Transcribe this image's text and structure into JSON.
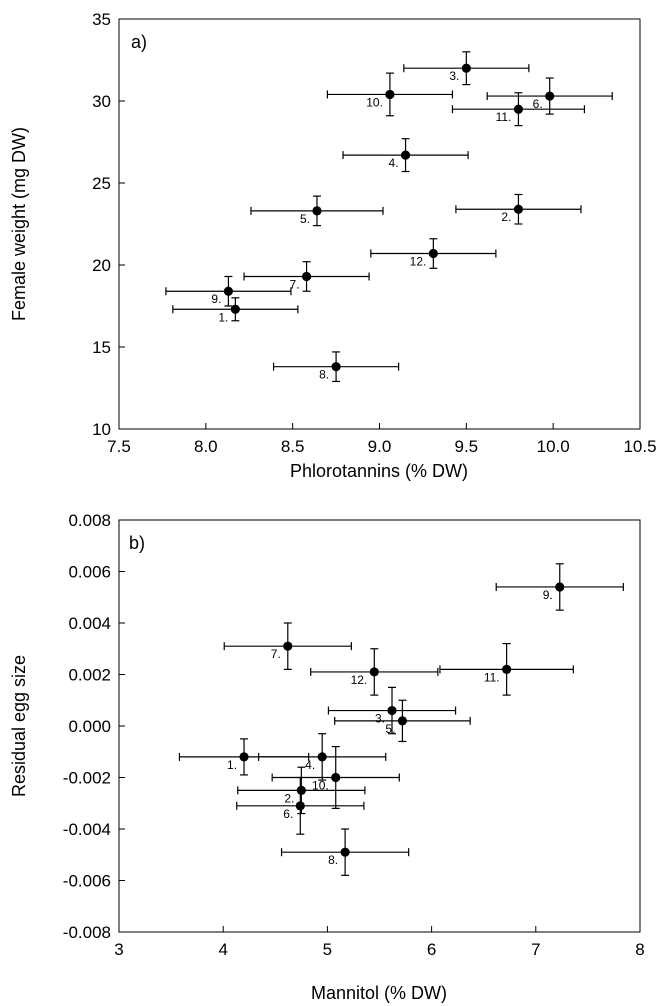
{
  "chart_data": [
    {
      "type": "scatter",
      "panel_label": "a)",
      "xlabel": "Phlorotannins (% DW)",
      "ylabel": "Female weight (mg DW)",
      "xlim": [
        7.5,
        10.5
      ],
      "ylim": [
        10,
        35
      ],
      "xticks": [
        7.5,
        8.0,
        8.5,
        9.0,
        9.5,
        10.0,
        10.5
      ],
      "xtick_labels": [
        "7.5",
        "8.0",
        "8.5",
        "9.0",
        "9.5",
        "10.0",
        "10.5"
      ],
      "yticks": [
        10,
        15,
        20,
        25,
        30,
        35
      ],
      "ytick_labels": [
        "10",
        "15",
        "20",
        "25",
        "30",
        "35"
      ],
      "grid": false,
      "points": [
        {
          "label": "1.",
          "x": 8.17,
          "y": 17.3,
          "xerr": 0.36,
          "yerr": 0.7
        },
        {
          "label": "2.",
          "x": 9.8,
          "y": 23.4,
          "xerr": 0.36,
          "yerr": 0.9
        },
        {
          "label": "3.",
          "x": 9.5,
          "y": 32.0,
          "xerr": 0.36,
          "yerr": 1.0
        },
        {
          "label": "4.",
          "x": 9.15,
          "y": 26.7,
          "xerr": 0.36,
          "yerr": 1.0
        },
        {
          "label": "5.",
          "x": 8.64,
          "y": 23.3,
          "xerr": 0.38,
          "yerr": 0.9
        },
        {
          "label": "6.",
          "x": 9.98,
          "y": 30.3,
          "xerr": 0.36,
          "yerr": 1.1
        },
        {
          "label": "7.",
          "x": 8.58,
          "y": 19.3,
          "xerr": 0.36,
          "yerr": 0.9
        },
        {
          "label": "8.",
          "x": 8.75,
          "y": 13.8,
          "xerr": 0.36,
          "yerr": 0.9
        },
        {
          "label": "9.",
          "x": 8.13,
          "y": 18.4,
          "xerr": 0.36,
          "yerr": 0.9
        },
        {
          "label": "10.",
          "x": 9.06,
          "y": 30.4,
          "xerr": 0.36,
          "yerr": 1.3
        },
        {
          "label": "11.",
          "x": 9.8,
          "y": 29.5,
          "xerr": 0.38,
          "yerr": 1.0
        },
        {
          "label": "12.",
          "x": 9.31,
          "y": 20.7,
          "xerr": 0.36,
          "yerr": 0.9
        }
      ]
    },
    {
      "type": "scatter",
      "panel_label": "b)",
      "xlabel": "Mannitol (% DW)",
      "ylabel": "Residual egg size",
      "xlim": [
        3,
        8
      ],
      "ylim": [
        -0.008,
        0.008
      ],
      "xticks": [
        3,
        4,
        5,
        6,
        7,
        8
      ],
      "xtick_labels": [
        "3",
        "4",
        "5",
        "6",
        "7",
        "8"
      ],
      "yticks": [
        -0.008,
        -0.006,
        -0.004,
        -0.002,
        0.0,
        0.002,
        0.004,
        0.006,
        0.008
      ],
      "ytick_labels": [
        "-0.008",
        "-0.006",
        "-0.004",
        "-0.002",
        "0.000",
        "0.002",
        "0.004",
        "0.006",
        "0.008"
      ],
      "grid": false,
      "points": [
        {
          "label": "1.",
          "x": 4.2,
          "y": -0.0012,
          "xerr": 0.62,
          "yerr": 0.0007
        },
        {
          "label": "2.",
          "x": 4.75,
          "y": -0.0025,
          "xerr": 0.61,
          "yerr": 0.0009
        },
        {
          "label": "3.",
          "x": 5.62,
          "y": 0.0006,
          "xerr": 0.61,
          "yerr": 0.0009
        },
        {
          "label": "4.",
          "x": 4.95,
          "y": -0.0012,
          "xerr": 0.61,
          "yerr": 0.0009
        },
        {
          "label": "5.",
          "x": 5.72,
          "y": 0.0002,
          "xerr": 0.65,
          "yerr": 0.0008
        },
        {
          "label": "6.",
          "x": 4.74,
          "y": -0.0031,
          "xerr": 0.61,
          "yerr": 0.0011
        },
        {
          "label": "7.",
          "x": 4.62,
          "y": 0.0031,
          "xerr": 0.61,
          "yerr": 0.0009
        },
        {
          "label": "8.",
          "x": 5.17,
          "y": -0.0049,
          "xerr": 0.61,
          "yerr": 0.0009
        },
        {
          "label": "9.",
          "x": 7.23,
          "y": 0.0054,
          "xerr": 0.61,
          "yerr": 0.0009
        },
        {
          "label": "10.",
          "x": 5.08,
          "y": -0.002,
          "xerr": 0.61,
          "yerr": 0.0012
        },
        {
          "label": "11.",
          "x": 6.72,
          "y": 0.0022,
          "xerr": 0.64,
          "yerr": 0.001
        },
        {
          "label": "12.",
          "x": 5.45,
          "y": 0.0021,
          "xerr": 0.61,
          "yerr": 0.0009
        }
      ]
    }
  ]
}
